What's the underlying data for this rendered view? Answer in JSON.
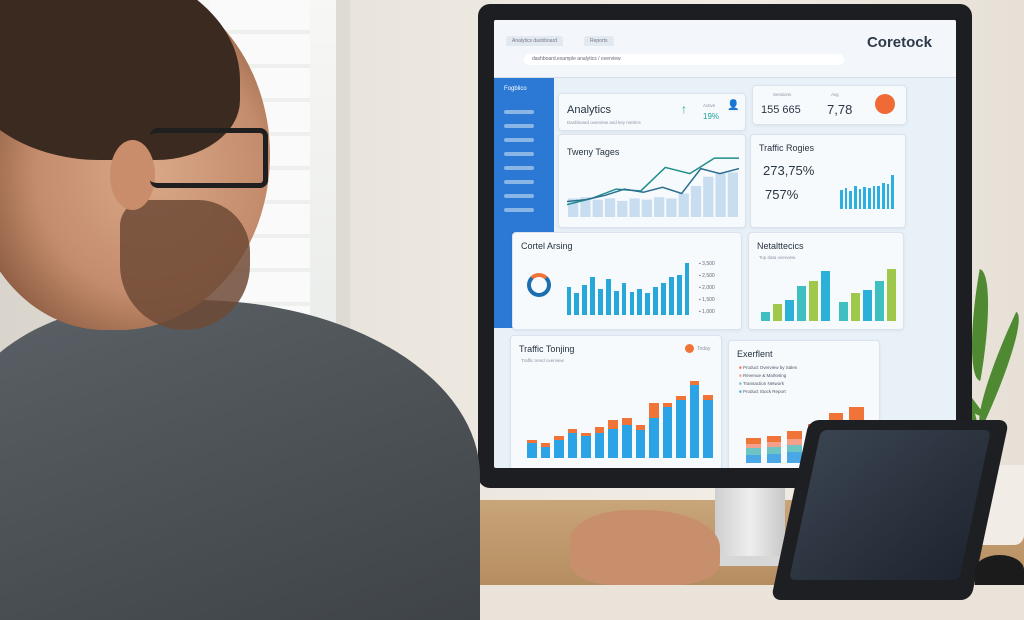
{
  "browser": {
    "tabs": [
      "Analytics dashboard",
      "Reports"
    ],
    "address": "dashboard.example analytics / overview",
    "brand": "Coretock"
  },
  "sidebar": {
    "logo": "Fogblico",
    "items": 8,
    "color": "#2b79d4"
  },
  "analytics_card": {
    "title": "Analytics",
    "subtitle": "Dashboard overview and key metrics",
    "metric_label": "Active",
    "metric_value": "19%",
    "accent": "#1fa39a"
  },
  "stats_card": {
    "label_a": "Sessions",
    "value_a": "155 665",
    "label_b": "Avg",
    "value_b": "7,78",
    "avatar_color": "#f06a35"
  },
  "line_card": {
    "title": "Tweny Tages",
    "line_values": [
      20,
      30,
      45,
      42,
      80,
      70,
      95,
      95
    ],
    "line2_values": [
      25,
      28,
      35,
      45,
      40,
      48,
      38,
      78,
      70,
      78
    ],
    "bar_values": [
      30,
      32,
      28,
      30,
      26,
      30,
      28,
      32,
      30,
      38,
      50,
      65,
      70,
      72
    ]
  },
  "traffic_card": {
    "title": "Traffic Rogies",
    "value_a": "273,75%",
    "value_b": "757%",
    "bar_values": [
      50,
      55,
      48,
      60,
      52,
      58,
      55,
      62,
      60,
      70,
      65,
      90
    ]
  },
  "control_card": {
    "title": "Cortel Arsing",
    "bar_values": [
      70,
      55,
      75,
      95,
      65,
      90,
      60,
      80,
      58,
      65,
      55,
      70,
      80,
      95,
      100,
      130
    ],
    "legend": [
      "3,500",
      "2,500",
      "2,000",
      "1,500",
      "1,000"
    ]
  },
  "net_card": {
    "title": "Netalttecics",
    "subtitle": "Top data overview",
    "groups": [
      [
        20,
        35,
        45,
        75,
        85,
        105
      ],
      [
        40,
        60,
        65,
        85,
        110
      ]
    ],
    "colors": [
      "#3fbfc0",
      "#9fc84a",
      "#2bb0d8"
    ]
  },
  "traffic_trend_card": {
    "title": "Traffic Tonjing",
    "subtitle": "Traffic trend overview",
    "badge": "Today",
    "bars": [
      [
        20,
        5
      ],
      [
        15,
        5
      ],
      [
        25,
        5
      ],
      [
        35,
        5
      ],
      [
        30,
        5
      ],
      [
        35,
        8
      ],
      [
        40,
        12
      ],
      [
        45,
        10
      ],
      [
        38,
        8
      ],
      [
        55,
        20
      ],
      [
        70,
        5
      ],
      [
        80,
        5
      ],
      [
        100,
        6
      ],
      [
        80,
        6
      ]
    ],
    "colors": [
      "#2ba3e4",
      "#f07438"
    ]
  },
  "excellent_card": {
    "title": "Exerflent",
    "legend": [
      "Product Overview by Sales",
      "Revenue & Marketing",
      "Transaction Network",
      "Product Stock Report"
    ],
    "bars": [
      [
        20,
        15,
        10,
        15
      ],
      [
        22,
        15,
        12,
        15
      ],
      [
        25,
        18,
        14,
        18
      ],
      [
        30,
        22,
        18,
        22
      ],
      [
        35,
        28,
        25,
        30
      ],
      [
        40,
        32,
        28,
        32
      ]
    ],
    "colors": [
      "#4aa8e6",
      "#6ec3c3",
      "#f4a08a",
      "#f07438"
    ]
  }
}
